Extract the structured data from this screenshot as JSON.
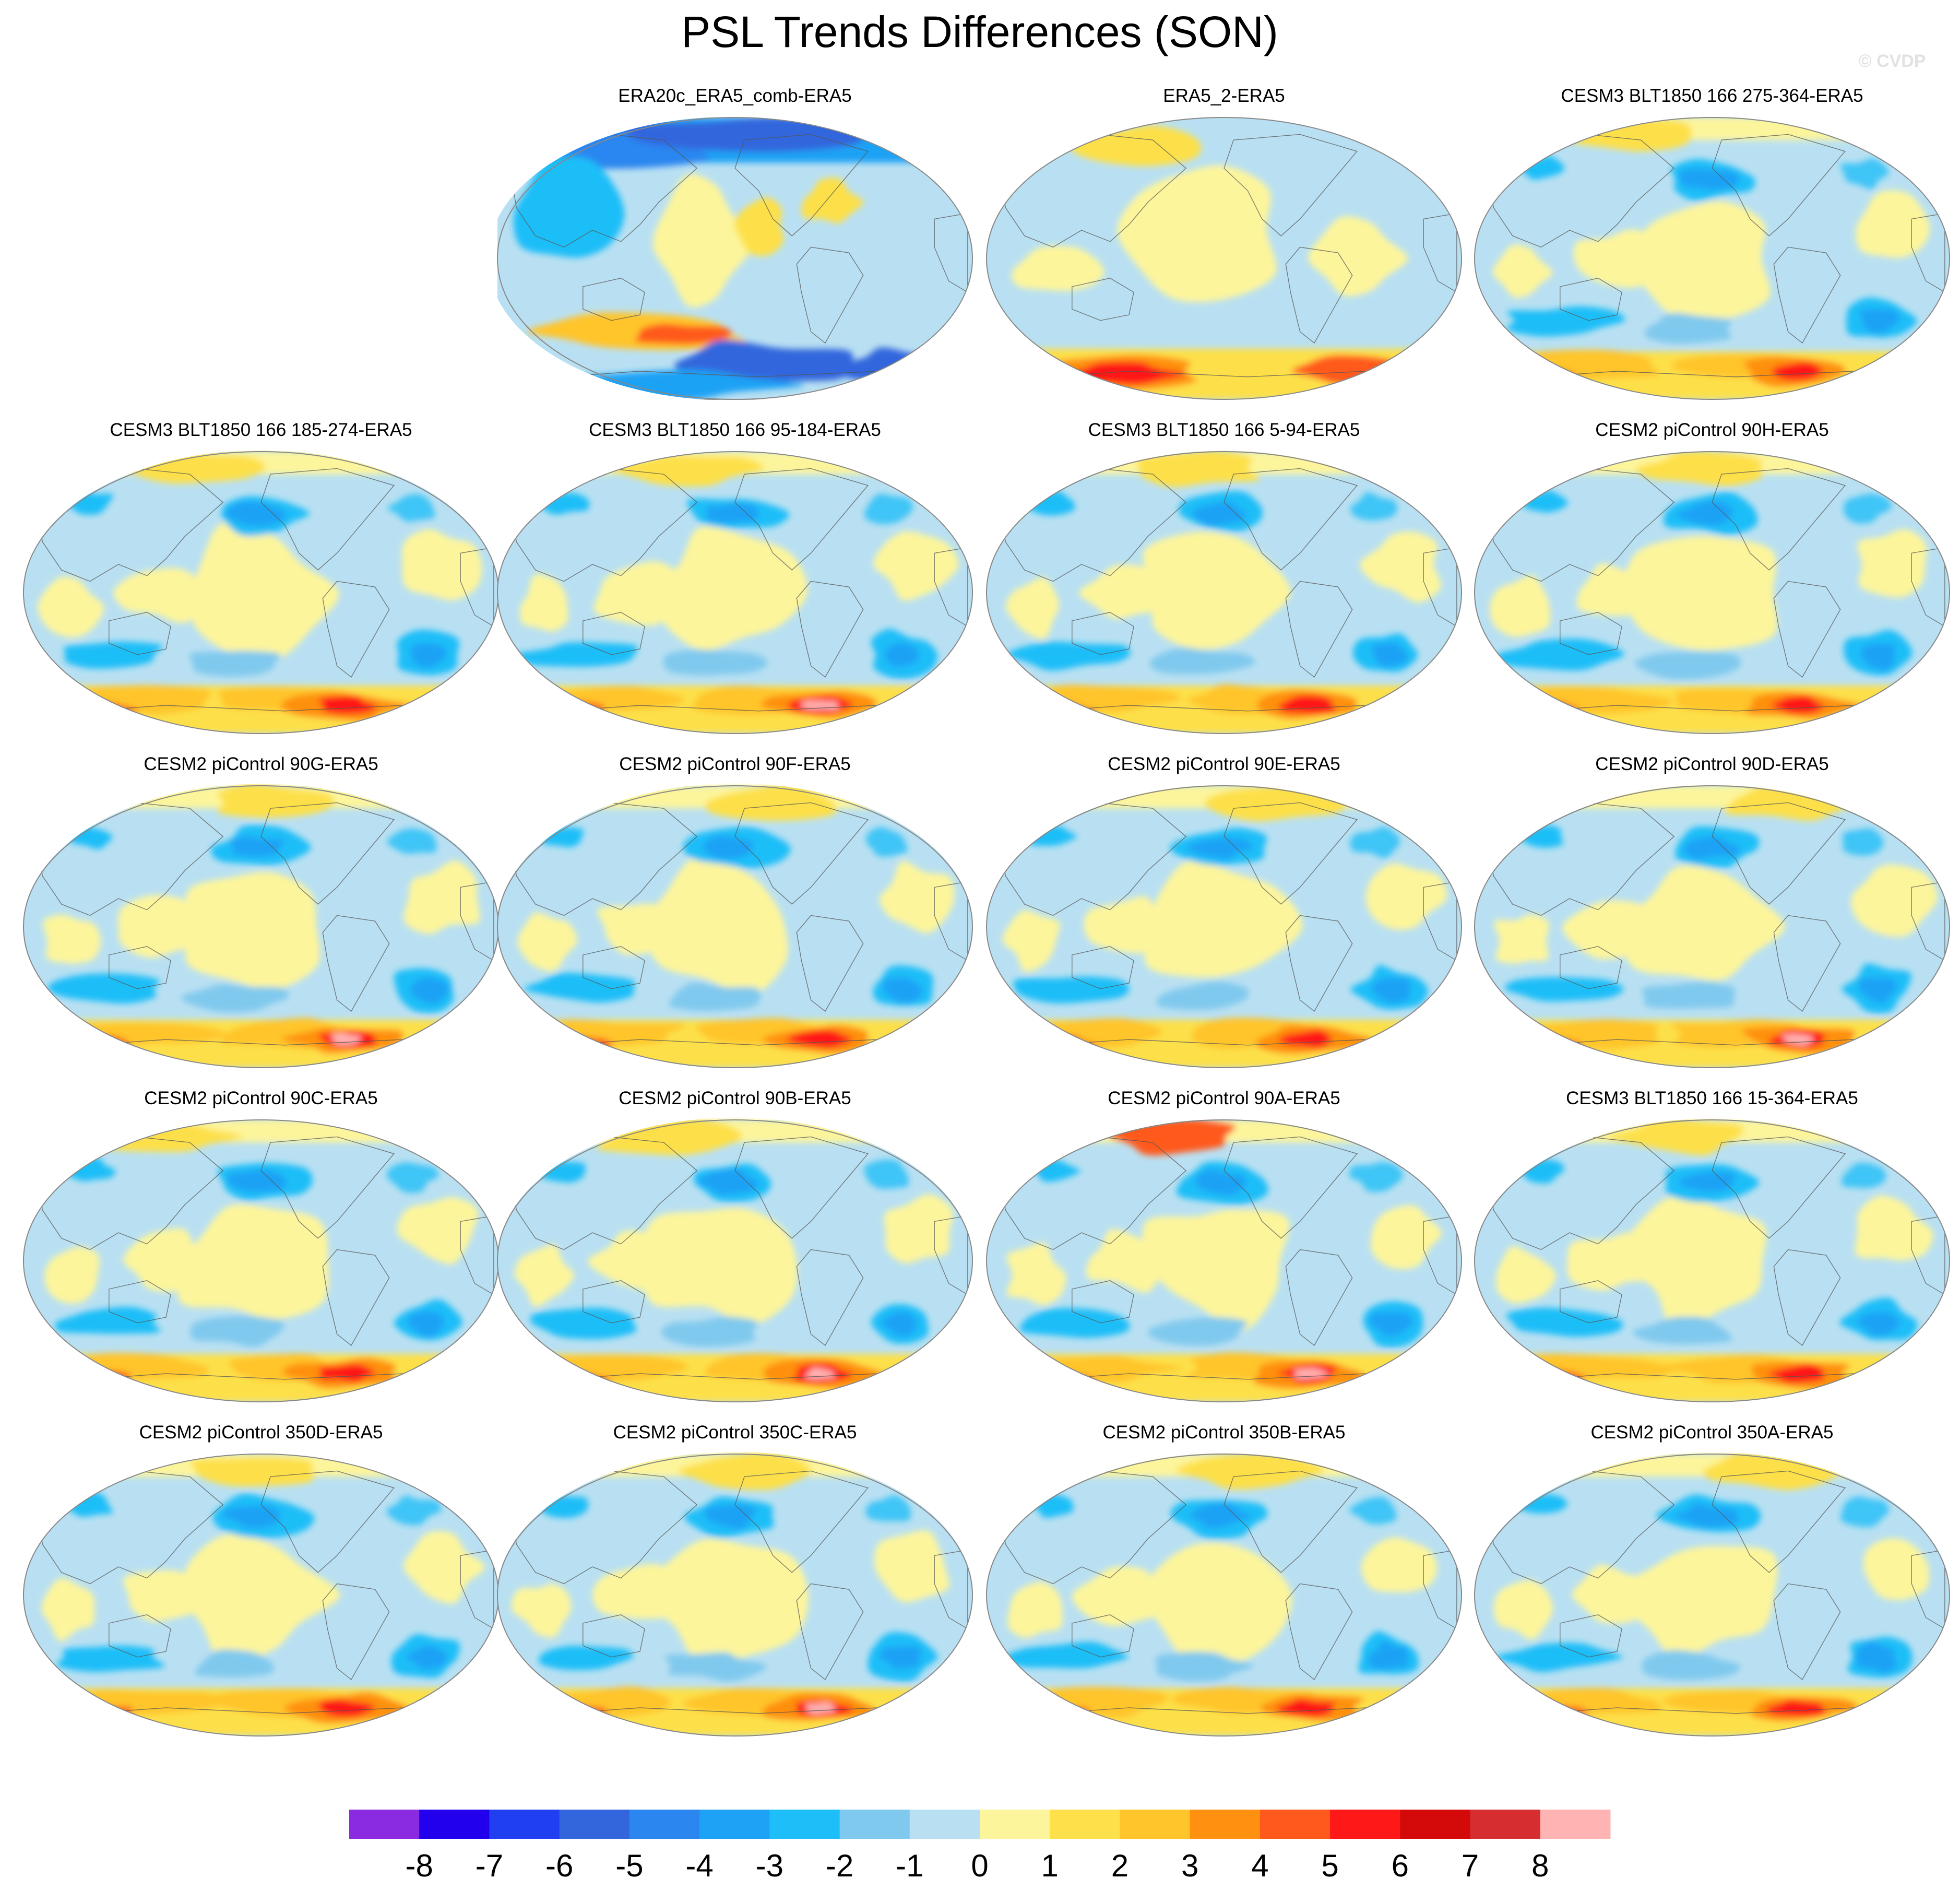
{
  "chart_data": {
    "type": "map-panels",
    "title": "PSL Trends Differences (SON)",
    "watermark": "© CVDP",
    "projection": "robinson",
    "layout": {
      "rows": 5,
      "cols": 4,
      "empty_slots": [
        0
      ]
    },
    "panels": [
      {
        "title": "ERA20c_ERA5_comb-ERA5",
        "variant": "era20c"
      },
      {
        "title": "ERA5_2-ERA5",
        "variant": "era5"
      },
      {
        "title": "CESM3 BLT1850 166 275-364-ERA5",
        "variant": "model",
        "seed": 1
      },
      {
        "title": "CESM3 BLT1850 166 185-274-ERA5",
        "variant": "model",
        "seed": 2
      },
      {
        "title": "CESM3 BLT1850 166 95-184-ERA5",
        "variant": "model",
        "seed": 3
      },
      {
        "title": "CESM3 BLT1850 166 5-94-ERA5",
        "variant": "model",
        "seed": 4
      },
      {
        "title": "CESM2 piControl 90H-ERA5",
        "variant": "model",
        "seed": 5
      },
      {
        "title": "CESM2 piControl 90G-ERA5",
        "variant": "model",
        "seed": 6
      },
      {
        "title": "CESM2 piControl 90F-ERA5",
        "variant": "model",
        "seed": 7
      },
      {
        "title": "CESM2 piControl 90E-ERA5",
        "variant": "model",
        "seed": 8
      },
      {
        "title": "CESM2 piControl 90D-ERA5",
        "variant": "model",
        "seed": 9
      },
      {
        "title": "CESM2 piControl 90C-ERA5",
        "variant": "model",
        "seed": 10
      },
      {
        "title": "CESM2 piControl 90B-ERA5",
        "variant": "model",
        "seed": 11
      },
      {
        "title": "CESM2 piControl 90A-ERA5",
        "variant": "model",
        "seed": 12
      },
      {
        "title": "CESM3 BLT1850 166 15-364-ERA5",
        "variant": "model",
        "seed": 13
      },
      {
        "title": "CESM2 piControl 350D-ERA5",
        "variant": "model",
        "seed": 14
      },
      {
        "title": "CESM2 piControl 350C-ERA5",
        "variant": "model",
        "seed": 15
      },
      {
        "title": "CESM2 piControl 350B-ERA5",
        "variant": "model",
        "seed": 16
      },
      {
        "title": "CESM2 piControl 350A-ERA5",
        "variant": "model",
        "seed": 17
      }
    ],
    "colorbar": {
      "levels": [
        -8,
        -7,
        -6,
        -5,
        -4,
        -3,
        -2,
        -1,
        0,
        1,
        2,
        3,
        4,
        5,
        6,
        7,
        8
      ],
      "labels": [
        "-8",
        "-7",
        "-6",
        "-5",
        "-4",
        "-3",
        "-2",
        "-1",
        "0",
        "1",
        "2",
        "3",
        "4",
        "5",
        "6",
        "7",
        "8"
      ],
      "colors": [
        "#8a2be2",
        "#2200ee",
        "#1f3ff0",
        "#3366dd",
        "#2c86f0",
        "#1ea2f5",
        "#1ebef8",
        "#80c9ee",
        "#b9e0f2",
        "#fdf59b",
        "#fde04a",
        "#ffc52a",
        "#ff9010",
        "#ff5a1b",
        "#ff1818",
        "#d40a0a",
        "#d52d30",
        "#ffb3b3"
      ]
    }
  }
}
